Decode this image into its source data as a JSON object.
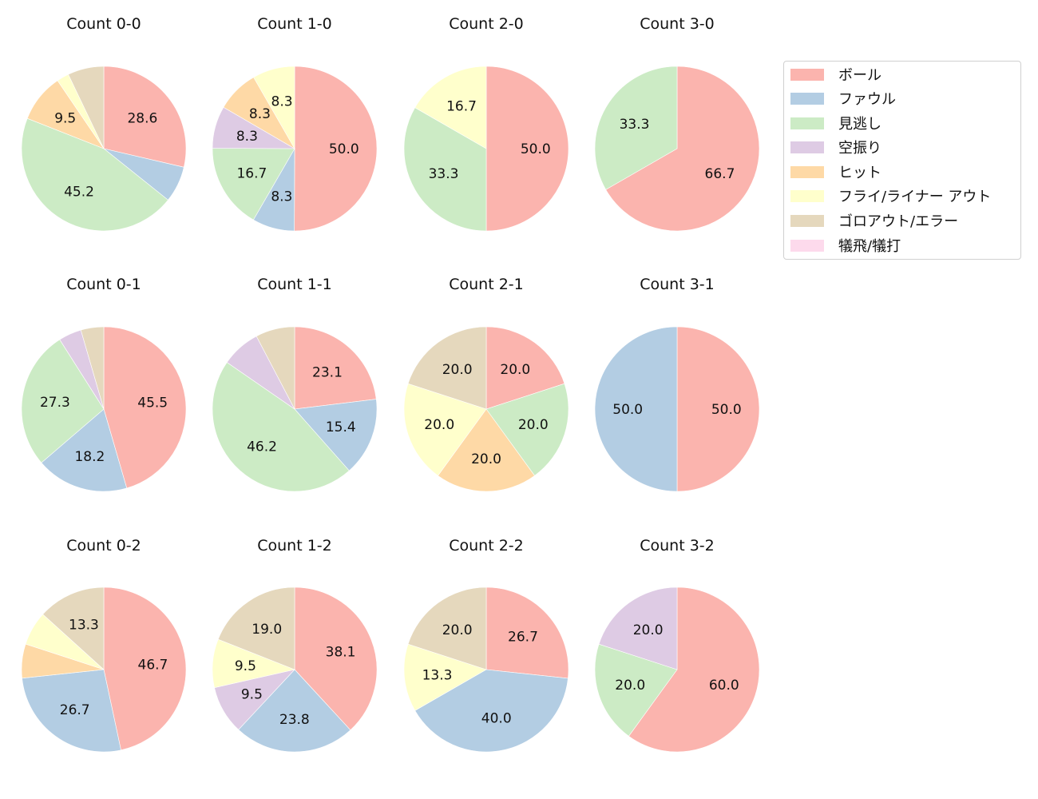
{
  "chart_data": {
    "type": "pie",
    "categories": [
      "ボール",
      "ファウル",
      "見逃し",
      "空振り",
      "ヒット",
      "フライ/ライナー アウト",
      "ゴロアウト/エラー",
      "犠飛/犠打"
    ],
    "colors": [
      "#fbb4ae",
      "#b3cde3",
      "#ccebc5",
      "#decbe4",
      "#fed9a6",
      "#ffffcc",
      "#e5d8bd",
      "#fddaec"
    ],
    "legend_position": "right",
    "charts": [
      {
        "title": "Count 0-0",
        "values": [
          28.6,
          7.1,
          45.2,
          0,
          9.5,
          2.4,
          7.1,
          0
        ],
        "labels": [
          "28.6",
          "",
          "45.2",
          "",
          "9.5",
          "",
          "",
          ""
        ]
      },
      {
        "title": "Count 1-0",
        "values": [
          50.0,
          8.3,
          16.7,
          8.3,
          8.3,
          8.3,
          0,
          0
        ],
        "labels": [
          "50.0",
          "8.3",
          "16.7",
          "8.3",
          "8.3",
          "8.3",
          "",
          ""
        ]
      },
      {
        "title": "Count 2-0",
        "values": [
          50.0,
          0,
          33.3,
          0,
          0,
          16.7,
          0,
          0
        ],
        "labels": [
          "50.0",
          "",
          "33.3",
          "",
          "",
          "16.7",
          "",
          ""
        ]
      },
      {
        "title": "Count 3-0",
        "values": [
          66.7,
          0,
          33.3,
          0,
          0,
          0,
          0,
          0
        ],
        "labels": [
          "66.7",
          "",
          "33.3",
          "",
          "",
          "",
          "",
          ""
        ]
      },
      {
        "title": "Count 0-1",
        "values": [
          45.5,
          18.2,
          27.3,
          4.5,
          0,
          0,
          4.5,
          0
        ],
        "labels": [
          "45.5",
          "18.2",
          "27.3",
          "",
          "",
          "",
          "",
          ""
        ]
      },
      {
        "title": "Count 1-1",
        "values": [
          23.1,
          15.4,
          46.2,
          7.7,
          0,
          0,
          7.7,
          0
        ],
        "labels": [
          "23.1",
          "15.4",
          "46.2",
          "",
          "",
          "",
          "",
          ""
        ]
      },
      {
        "title": "Count 2-1",
        "values": [
          20.0,
          0,
          20.0,
          0,
          20.0,
          20.0,
          20.0,
          0
        ],
        "labels": [
          "20.0",
          "",
          "20.0",
          "",
          "20.0",
          "20.0",
          "20.0",
          ""
        ]
      },
      {
        "title": "Count 3-1",
        "values": [
          50.0,
          50.0,
          0,
          0,
          0,
          0,
          0,
          0
        ],
        "labels": [
          "50.0",
          "50.0",
          "",
          "",
          "",
          "",
          "",
          ""
        ]
      },
      {
        "title": "Count 0-2",
        "values": [
          46.7,
          26.7,
          0,
          0,
          6.7,
          6.7,
          13.3,
          0
        ],
        "labels": [
          "46.7",
          "26.7",
          "",
          "",
          "",
          "",
          "13.3",
          ""
        ]
      },
      {
        "title": "Count 1-2",
        "values": [
          38.1,
          23.8,
          0,
          9.5,
          0,
          9.5,
          19.0,
          0
        ],
        "labels": [
          "38.1",
          "23.8",
          "",
          "9.5",
          "",
          "9.5",
          "19.0",
          ""
        ]
      },
      {
        "title": "Count 2-2",
        "values": [
          26.7,
          40.0,
          0,
          0,
          0,
          13.3,
          20.0,
          0
        ],
        "labels": [
          "26.7",
          "40.0",
          "",
          "",
          "",
          "13.3",
          "20.0",
          ""
        ]
      },
      {
        "title": "Count 3-2",
        "values": [
          60.0,
          0,
          20.0,
          20.0,
          0,
          0,
          0,
          0
        ],
        "labels": [
          "60.0",
          "",
          "20.0",
          "20.0",
          "",
          "",
          "",
          ""
        ]
      }
    ]
  },
  "legend": {
    "items": [
      {
        "label": "ボール",
        "color": "#fbb4ae"
      },
      {
        "label": "ファウル",
        "color": "#b3cde3"
      },
      {
        "label": "見逃し",
        "color": "#ccebc5"
      },
      {
        "label": "空振り",
        "color": "#decbe4"
      },
      {
        "label": "ヒット",
        "color": "#fed9a6"
      },
      {
        "label": "フライ/ライナー アウト",
        "color": "#ffffcc"
      },
      {
        "label": "ゴロアウト/エラー",
        "color": "#e5d8bd"
      },
      {
        "label": "犠飛/犠打",
        "color": "#fddaec"
      }
    ]
  }
}
